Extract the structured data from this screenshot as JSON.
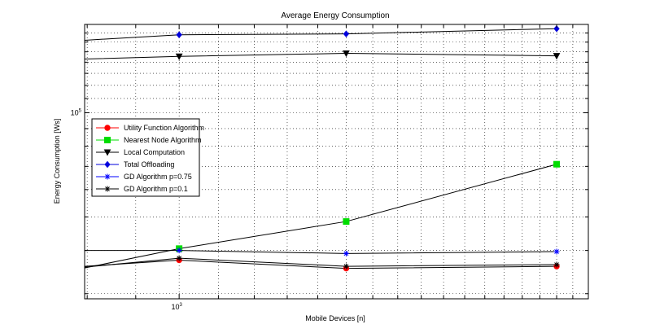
{
  "chart_data": {
    "type": "line",
    "title": "Average Energy Consumption",
    "xlabel": "Mobile Devices [n]",
    "ylabel": "Energy Consumption [Ws]",
    "xscale": "log",
    "yscale": "log",
    "xlim": [
      795,
      2700
    ],
    "ylim": [
      29000,
      180000
    ],
    "x": [
      1000,
      1500,
      2500
    ],
    "y_ticks": [
      {
        "value": 100000,
        "base": "10",
        "exp": "5"
      }
    ],
    "x_ticks": [
      {
        "value": 1000,
        "base": "10",
        "exp": "3"
      }
    ],
    "grid": true,
    "legend_position": "center-left",
    "series": [
      {
        "name": "Utility Function Algorithm",
        "color": "#ff0000",
        "marker": "circle",
        "start": 36000,
        "values": [
          37500,
          35500,
          36000
        ]
      },
      {
        "name": "Nearest Node Algorithm",
        "color": "#00dd00",
        "marker": "square",
        "start": 35600,
        "values": [
          40500,
          48500,
          71000
        ]
      },
      {
        "name": "Local Computation",
        "color": "#000000",
        "marker": "triangle-down",
        "start": 143000,
        "values": [
          145500,
          148500,
          146000
        ]
      },
      {
        "name": "Total Offloading",
        "color": "#0000dd",
        "marker": "diamond",
        "start": 162000,
        "values": [
          168000,
          169000,
          175000
        ]
      },
      {
        "name": "GD Algorithm p=0.75",
        "color": "#0000ff",
        "marker": "star",
        "start": 40000,
        "values": [
          40000,
          39200,
          39700
        ]
      },
      {
        "name": "GD Algorithm p=0.1",
        "color": "#000000",
        "marker": "star",
        "start": 35800,
        "values": [
          38000,
          36000,
          36400
        ]
      }
    ]
  }
}
